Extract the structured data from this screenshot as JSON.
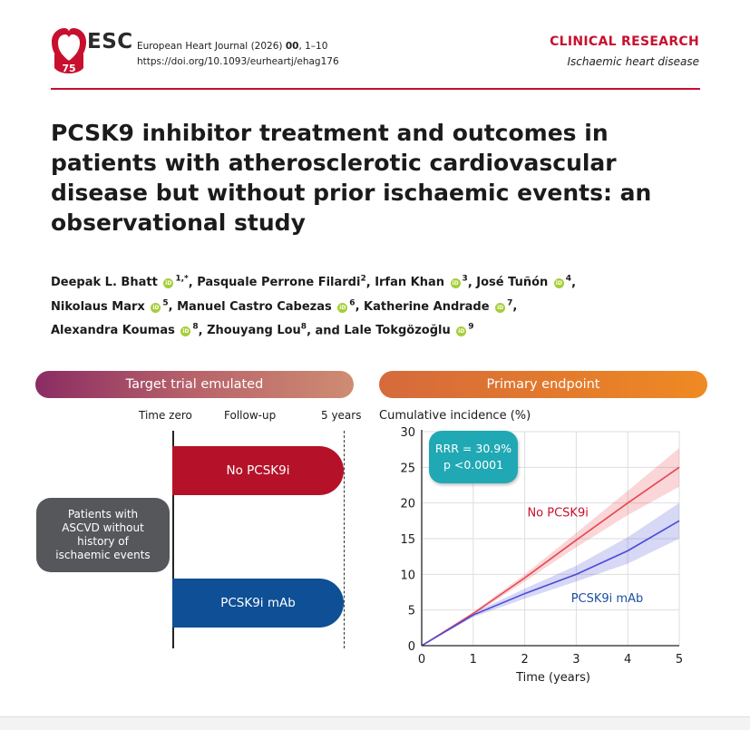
{
  "header": {
    "logo_text": "ESC",
    "logo_badge": "75",
    "journal_line": "European Heart Journal (2026)",
    "journal_volume": "00",
    "journal_pages": ", 1–10",
    "doi": "https://doi.org/10.1093/eurheartj/ehag176",
    "section": "CLINICAL RESEARCH",
    "subsection": "Ischaemic heart disease"
  },
  "article": {
    "title": "PCSK9 inhibitor treatment and outcomes in patients with atherosclerotic cardiovascular disease but without prior ischaemic events: an observational study",
    "authors": [
      {
        "name": "Deepak L. Bhatt",
        "orcid": true,
        "sup": "1,*"
      },
      {
        "name": "Pasquale Perrone Filardi",
        "orcid": false,
        "sup": "2"
      },
      {
        "name": "Irfan Khan",
        "orcid": true,
        "sup": "3"
      },
      {
        "name": "José Tuñón",
        "orcid": true,
        "sup": "4"
      },
      {
        "name": "Nikolaus Marx",
        "orcid": true,
        "sup": "5"
      },
      {
        "name": "Manuel Castro Cabezas",
        "orcid": true,
        "sup": "6"
      },
      {
        "name": "Katherine Andrade",
        "orcid": true,
        "sup": "7"
      },
      {
        "name": "Alexandra Koumas",
        "orcid": true,
        "sup": "8"
      },
      {
        "name": "Zhouyang Lou",
        "orcid": false,
        "sup": "8"
      },
      {
        "name": "Lale Tokgözoğlu",
        "orcid": true,
        "sup": "9"
      }
    ],
    "orcid_icon_text": "iD"
  },
  "trial_panel": {
    "banner": "Target trial emulated",
    "time_zero": "Time zero",
    "follow_up": "Follow-up",
    "five_years": "5 years",
    "patients": "Patients with ASCVD without history of ischaemic events",
    "arm_control": "No PCSK9i",
    "arm_treated": "PCSK9i mAb",
    "colors": {
      "control": "#b5122a",
      "treated": "#0e4f96",
      "patients_box": "#55575a"
    }
  },
  "endpoint_panel": {
    "banner": "Primary endpoint",
    "rrr_line1": "RRR = 30.9%",
    "rrr_line2": "p <0.0001"
  },
  "chart_data": {
    "type": "line",
    "title": "Cumulative incidence (%)",
    "xlabel": "Time (years)",
    "ylabel": "Cumulative incidence (%)",
    "xlim": [
      0,
      5
    ],
    "ylim": [
      0,
      30
    ],
    "xticks": [
      0,
      1,
      2,
      3,
      4,
      5
    ],
    "yticks": [
      0,
      5,
      10,
      15,
      20,
      25,
      30
    ],
    "grid": true,
    "series": [
      {
        "name": "No PCSK9i",
        "color": "#e8464f",
        "x": [
          0,
          1,
          2,
          3,
          4,
          5
        ],
        "y": [
          0,
          4.5,
          9.5,
          14.8,
          20.0,
          25.0
        ],
        "ci_low": [
          0,
          4.3,
          9.0,
          13.8,
          18.3,
          22.3
        ],
        "ci_high": [
          0,
          4.7,
          10.0,
          15.8,
          21.7,
          27.7
        ]
      },
      {
        "name": "PCSK9i mAb",
        "color": "#4a4ad8",
        "x": [
          0,
          1,
          2,
          3,
          4,
          5
        ],
        "y": [
          0,
          4.3,
          7.3,
          10.0,
          13.3,
          17.5
        ],
        "ci_low": [
          0,
          4.0,
          6.6,
          9.0,
          11.5,
          15.0
        ],
        "ci_high": [
          0,
          4.6,
          8.0,
          11.2,
          15.2,
          20.0
        ]
      }
    ]
  }
}
